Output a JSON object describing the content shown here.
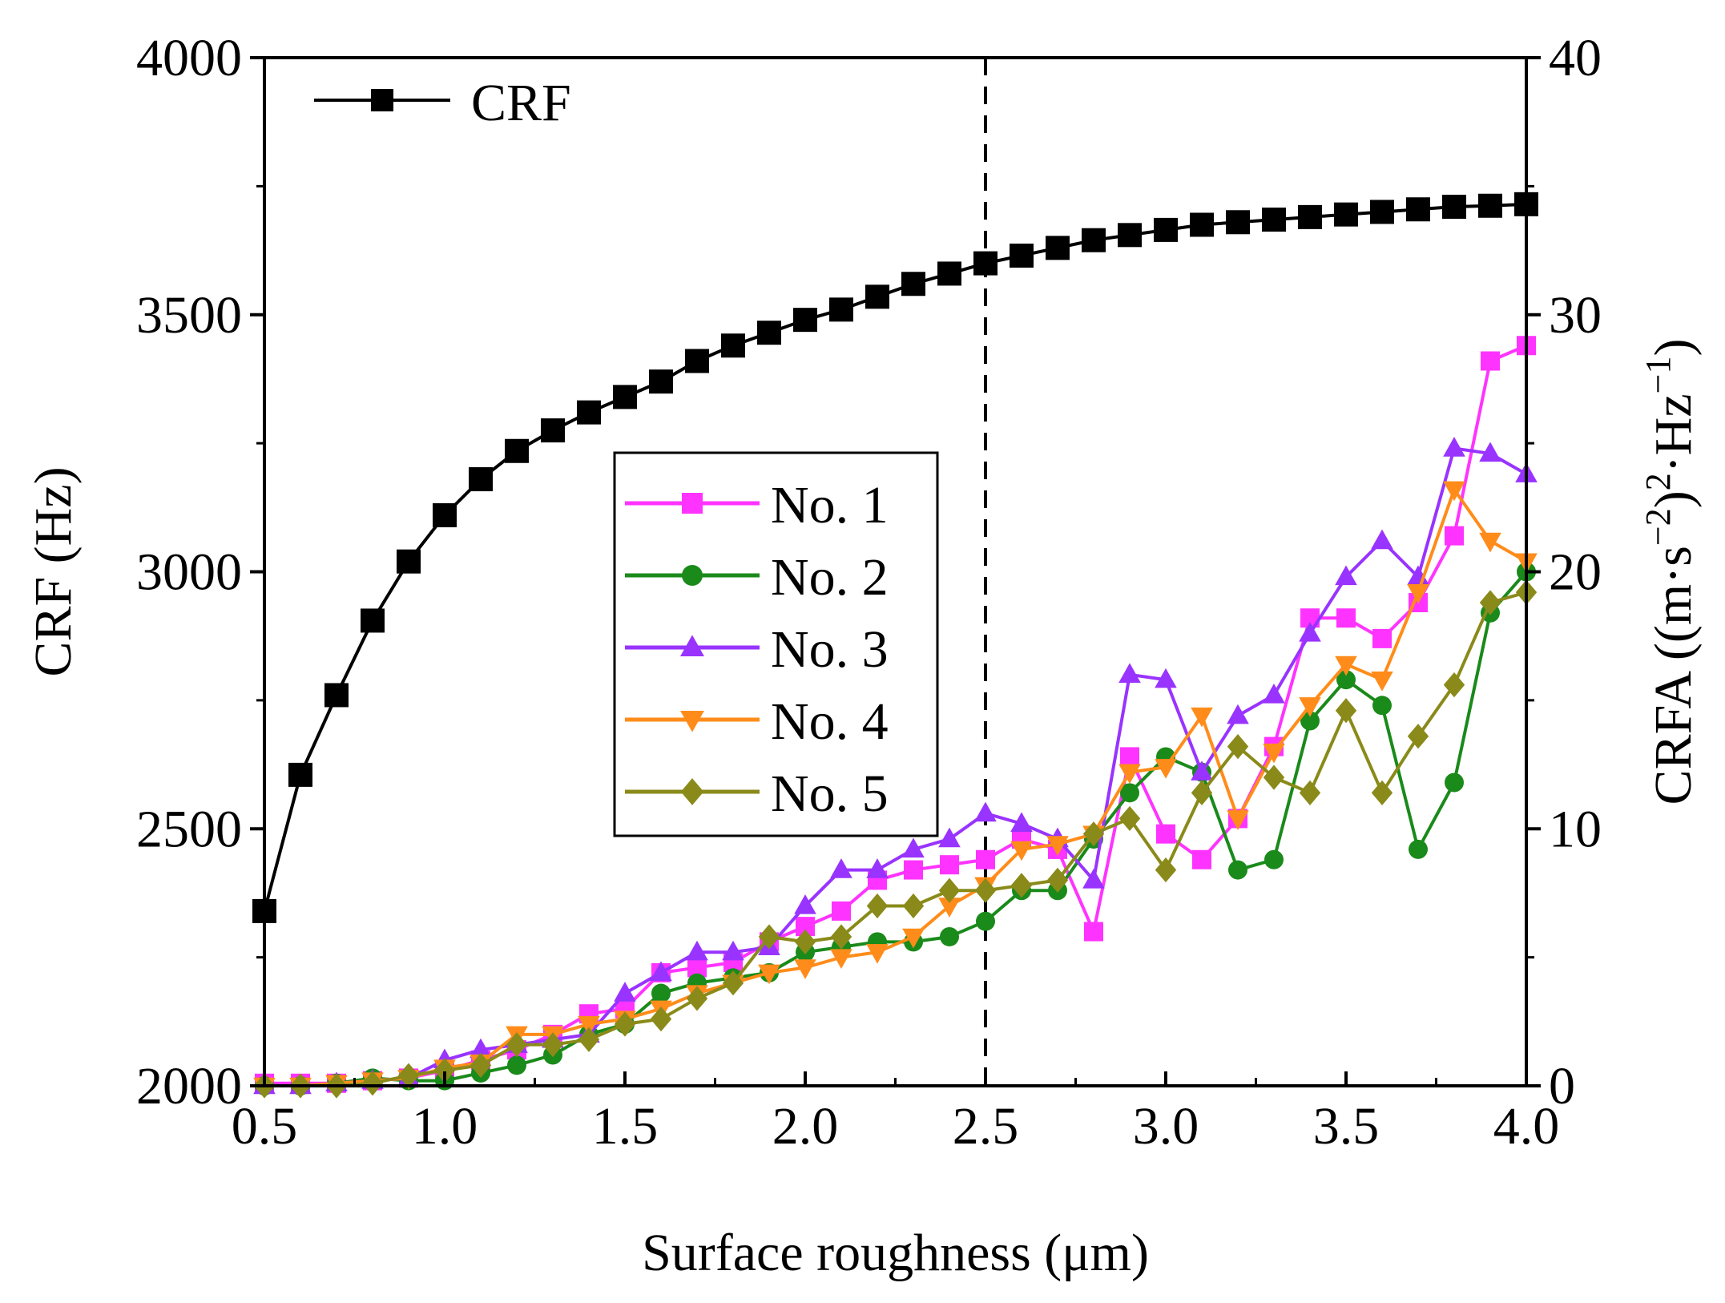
{
  "chart_data": {
    "type": "line",
    "title": "",
    "xlabel": "Surface roughness (μm)",
    "ylabel_left": "CRF (Hz)",
    "ylabel_right_parts": [
      "CRFA ((m·s",
      "−2",
      ")",
      "2",
      "·Hz",
      "−1",
      ")"
    ],
    "xlim": [
      0.5,
      4.0
    ],
    "ylim_left": [
      2000,
      4000
    ],
    "ylim_right": [
      0,
      40
    ],
    "x_ticks": [
      0.5,
      1.0,
      1.5,
      2.0,
      2.5,
      3.0,
      3.5,
      4.0
    ],
    "x_tick_labels": [
      "0.5",
      "1.0",
      "1.5",
      "2.0",
      "2.5",
      "3.0",
      "3.5",
      "4.0"
    ],
    "y_left_ticks": [
      2000,
      2500,
      3000,
      3500,
      4000
    ],
    "y_left_tick_labels": [
      "2000",
      "2500",
      "3000",
      "3500",
      "4000"
    ],
    "y_right_ticks": [
      0,
      10,
      20,
      30,
      40
    ],
    "y_right_tick_labels": [
      "0",
      "10",
      "20",
      "30",
      "40"
    ],
    "reference_line_x": 2.5,
    "x": [
      0.5,
      0.6,
      0.7,
      0.8,
      0.9,
      1.0,
      1.1,
      1.2,
      1.3,
      1.4,
      1.5,
      1.6,
      1.7,
      1.8,
      1.9,
      2.0,
      2.1,
      2.2,
      2.3,
      2.4,
      2.5,
      2.6,
      2.7,
      2.8,
      2.9,
      3.0,
      3.1,
      3.2,
      3.3,
      3.4,
      3.5,
      3.6,
      3.7,
      3.8,
      3.9,
      4.0
    ],
    "crf_series": {
      "name": "CRF",
      "axis": "left",
      "color": "#000000",
      "marker": "square",
      "values": [
        2340,
        2605,
        2760,
        2905,
        3020,
        3110,
        3180,
        3235,
        3275,
        3310,
        3340,
        3370,
        3410,
        3440,
        3465,
        3490,
        3510,
        3535,
        3560,
        3580,
        3600,
        3615,
        3630,
        3645,
        3655,
        3665,
        3675,
        3680,
        3685,
        3690,
        3695,
        3700,
        3705,
        3710,
        3712,
        3715
      ]
    },
    "crfa_series": [
      {
        "name": "No. 1",
        "axis": "right",
        "color": "#ff33ff",
        "marker": "square",
        "values": [
          0.1,
          0.1,
          0.1,
          0.2,
          0.3,
          0.6,
          1.0,
          1.4,
          2.0,
          2.8,
          3.0,
          4.4,
          4.6,
          4.8,
          5.6,
          6.2,
          6.8,
          8.0,
          8.4,
          8.6,
          8.8,
          9.6,
          9.2,
          6.0,
          12.8,
          9.8,
          8.8,
          10.4,
          13.2,
          18.2,
          18.2,
          17.4,
          18.8,
          21.4,
          28.2,
          28.8
        ]
      },
      {
        "name": "No. 2",
        "axis": "right",
        "color": "#1a8a1a",
        "marker": "circle",
        "values": [
          0.0,
          0.0,
          0.1,
          0.3,
          0.2,
          0.2,
          0.5,
          0.8,
          1.2,
          2.0,
          2.4,
          3.6,
          4.0,
          4.2,
          4.4,
          5.2,
          5.4,
          5.6,
          5.6,
          5.8,
          6.4,
          7.6,
          7.6,
          9.6,
          11.4,
          12.8,
          12.2,
          8.4,
          8.8,
          14.2,
          15.8,
          14.8,
          9.2,
          11.8,
          18.4,
          20.0
        ]
      },
      {
        "name": "No. 3",
        "axis": "right",
        "color": "#9933ff",
        "marker": "triangle-up",
        "values": [
          0.0,
          0.0,
          0.1,
          0.2,
          0.3,
          1.0,
          1.4,
          1.6,
          1.8,
          2.0,
          3.6,
          4.4,
          5.2,
          5.2,
          5.4,
          7.0,
          8.4,
          8.4,
          9.2,
          9.6,
          10.6,
          10.2,
          9.6,
          8.0,
          16.0,
          15.8,
          12.2,
          14.4,
          15.2,
          17.6,
          19.8,
          21.2,
          19.8,
          24.8,
          24.6,
          23.8
        ]
      },
      {
        "name": "No. 4",
        "axis": "right",
        "color": "#ff8c1a",
        "marker": "triangle-down",
        "values": [
          0.0,
          0.0,
          0.1,
          0.2,
          0.3,
          0.7,
          0.9,
          2.0,
          2.0,
          2.4,
          2.6,
          3.0,
          3.6,
          4.0,
          4.4,
          4.6,
          5.0,
          5.2,
          5.8,
          7.0,
          7.8,
          9.2,
          9.4,
          9.8,
          12.2,
          12.4,
          14.4,
          10.4,
          13.0,
          14.8,
          16.4,
          15.8,
          19.2,
          23.2,
          21.2,
          20.4
        ]
      },
      {
        "name": "No. 5",
        "axis": "right",
        "color": "#8a8a1a",
        "marker": "diamond",
        "values": [
          0.0,
          0.0,
          0.0,
          0.1,
          0.4,
          0.6,
          0.8,
          1.6,
          1.6,
          1.8,
          2.4,
          2.6,
          3.4,
          4.0,
          5.8,
          5.6,
          5.8,
          7.0,
          7.0,
          7.6,
          7.6,
          7.8,
          8.0,
          9.8,
          10.4,
          8.4,
          11.4,
          13.2,
          12.0,
          11.4,
          14.6,
          11.4,
          13.6,
          15.6,
          18.8,
          19.2
        ]
      }
    ],
    "legend_crf": {
      "label": "CRF",
      "placement": "top-left"
    },
    "legend_crfa": {
      "labels": [
        "No. 1",
        "No. 2",
        "No. 3",
        "No. 4",
        "No. 5"
      ],
      "placement": "center-left"
    }
  }
}
